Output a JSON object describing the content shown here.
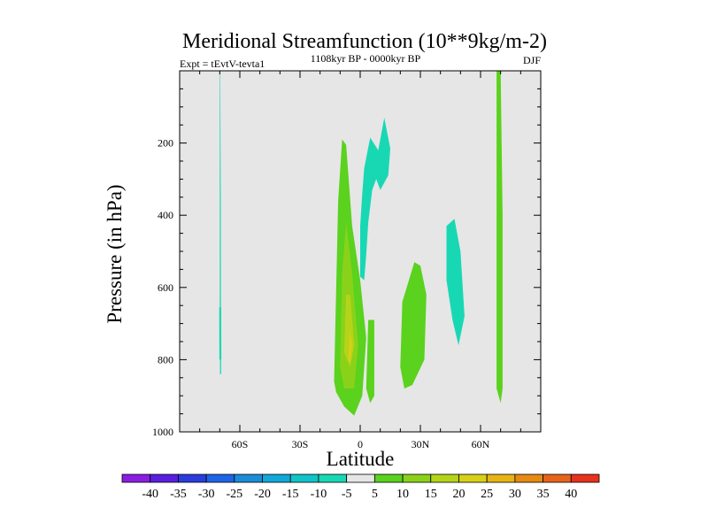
{
  "chart_data": {
    "type": "heatmap",
    "title": "Meridional Streamfunction (10**9kg/m-2)",
    "left_label": "Expt = tEvtV-tevta1",
    "center_label": "1108kyr BP - 0000kyr BP",
    "right_label": "DJF",
    "xlabel": "Latitude",
    "ylabel": "Pressure (in hPa)",
    "xlim": [
      -90,
      90
    ],
    "ylim": [
      1000,
      0
    ],
    "x_ticks": [
      {
        "value": -60,
        "label": "60S"
      },
      {
        "value": -30,
        "label": "30S"
      },
      {
        "value": 0,
        "label": "0"
      },
      {
        "value": 30,
        "label": "30N"
      },
      {
        "value": 60,
        "label": "60N"
      }
    ],
    "y_ticks": [
      {
        "value": 200,
        "label": "200"
      },
      {
        "value": 400,
        "label": "400"
      },
      {
        "value": 600,
        "label": "600"
      },
      {
        "value": 800,
        "label": "800"
      },
      {
        "value": 1000,
        "label": "1000"
      }
    ],
    "background_color": "#e6e6e6",
    "colorbar": {
      "levels": [
        "-40",
        "-35",
        "-30",
        "-25",
        "-20",
        "-15",
        "-10",
        "-5",
        "5",
        "10",
        "15",
        "20",
        "25",
        "30",
        "35",
        "40"
      ],
      "colors": [
        "#8a1ee0",
        "#5a1ee0",
        "#2a3cdc",
        "#1e64e6",
        "#1a8cd8",
        "#12a8d8",
        "#10c4c8",
        "#18d8b4",
        "#e6e6e6",
        "#5ad21e",
        "#8ad21a",
        "#b4d41a",
        "#d8d016",
        "#e6b414",
        "#e68a12",
        "#e6641a",
        "#e6321e"
      ]
    },
    "regions": [
      {
        "name": "cell-60s-strip",
        "color": "#18d8b4",
        "points": [
          [
            -70.0,
            3
          ],
          [
            -69.8,
            3
          ],
          [
            -69.5,
            360
          ],
          [
            -69.4,
            760
          ],
          [
            -69.3,
            840
          ],
          [
            -69.9,
            840
          ],
          [
            -70.0,
            700
          ]
        ]
      },
      {
        "name": "cell-60s-lower",
        "color": "#18d8b4",
        "points": [
          [
            -70.3,
            655
          ],
          [
            -69.3,
            655
          ],
          [
            -69.2,
            800
          ],
          [
            -70.2,
            800
          ]
        ]
      },
      {
        "name": "cell-eq-outer",
        "color": "#5ad21e",
        "points": [
          [
            -13,
            860
          ],
          [
            -11,
            360
          ],
          [
            -9,
            190
          ],
          [
            -7,
            205
          ],
          [
            -4,
            430
          ],
          [
            0,
            580
          ],
          [
            3,
            740
          ],
          [
            1,
            900
          ],
          [
            -3,
            955
          ],
          [
            -8,
            930
          ],
          [
            -12,
            890
          ]
        ]
      },
      {
        "name": "cell-eq-mid",
        "color": "#8ad21a",
        "points": [
          [
            -10,
            820
          ],
          [
            -9,
            560
          ],
          [
            -7,
            420
          ],
          [
            -4,
            560
          ],
          [
            -1,
            760
          ],
          [
            -3,
            880
          ],
          [
            -8,
            880
          ]
        ]
      },
      {
        "name": "cell-eq-inner",
        "color": "#b4d41a",
        "points": [
          [
            -8,
            780
          ],
          [
            -7,
            620
          ],
          [
            -5,
            620
          ],
          [
            -3,
            760
          ],
          [
            -5,
            820
          ]
        ]
      },
      {
        "name": "cell-eq-core",
        "color": "#d8d016",
        "points": [
          [
            -6,
            800
          ],
          [
            -5,
            720
          ],
          [
            -4,
            760
          ],
          [
            -5,
            810
          ]
        ]
      },
      {
        "name": "cell-eq-ne-right",
        "color": "#5ad21e",
        "points": [
          [
            4,
            690
          ],
          [
            7,
            690
          ],
          [
            7,
            900
          ],
          [
            5,
            920
          ],
          [
            3,
            880
          ]
        ]
      },
      {
        "name": "cell-30n",
        "color": "#5ad21e",
        "points": [
          [
            21,
            640
          ],
          [
            27,
            530
          ],
          [
            30,
            540
          ],
          [
            33,
            620
          ],
          [
            32,
            800
          ],
          [
            26,
            870
          ],
          [
            22,
            880
          ],
          [
            20,
            820
          ]
        ]
      },
      {
        "name": "cell-neg-upper",
        "color": "#18d8b4",
        "points": [
          [
            2,
            270
          ],
          [
            5,
            185
          ],
          [
            9,
            220
          ],
          [
            12,
            130
          ],
          [
            15,
            215
          ],
          [
            14,
            290
          ],
          [
            10,
            330
          ],
          [
            8,
            300
          ],
          [
            6,
            330
          ],
          [
            4,
            420
          ],
          [
            3,
            510
          ],
          [
            2,
            580
          ],
          [
            0,
            570
          ],
          [
            0,
            430
          ],
          [
            1,
            340
          ]
        ]
      },
      {
        "name": "cell-neg-45n",
        "color": "#18d8b4",
        "points": [
          [
            43,
            430
          ],
          [
            47,
            410
          ],
          [
            50,
            500
          ],
          [
            52,
            680
          ],
          [
            49,
            760
          ],
          [
            46,
            690
          ],
          [
            43,
            580
          ]
        ]
      },
      {
        "name": "cell-70n-strip",
        "color": "#5ad21e",
        "points": [
          [
            68,
            0
          ],
          [
            70,
            0
          ],
          [
            71,
            400
          ],
          [
            71,
            880
          ],
          [
            70,
            920
          ],
          [
            68,
            880
          ]
        ]
      }
    ]
  }
}
